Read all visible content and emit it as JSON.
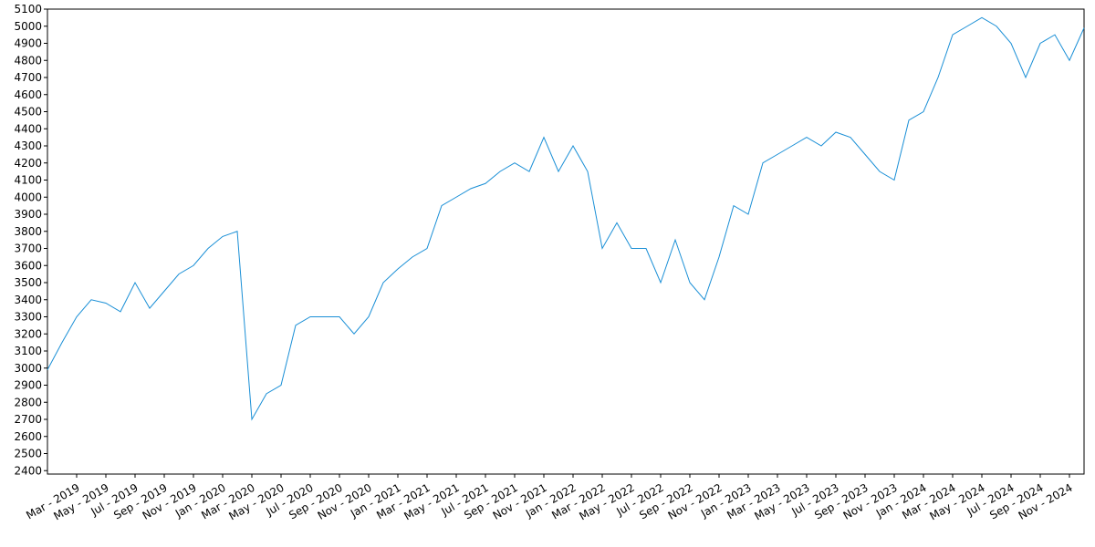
{
  "chart_data": {
    "type": "line",
    "color": "#1a8fd6",
    "x": [
      "2019-01",
      "2019-02",
      "2019-03",
      "2019-04",
      "2019-05",
      "2019-06",
      "2019-07",
      "2019-08",
      "2019-09",
      "2019-10",
      "2019-11",
      "2019-12",
      "2020-01",
      "2020-02",
      "2020-03",
      "2020-04",
      "2020-05",
      "2020-06",
      "2020-07",
      "2020-08",
      "2020-09",
      "2020-10",
      "2020-11",
      "2020-12",
      "2021-01",
      "2021-02",
      "2021-03",
      "2021-04",
      "2021-05",
      "2021-06",
      "2021-07",
      "2021-08",
      "2021-09",
      "2021-10",
      "2021-11",
      "2021-12",
      "2022-01",
      "2022-02",
      "2022-03",
      "2022-04",
      "2022-05",
      "2022-06",
      "2022-07",
      "2022-08",
      "2022-09",
      "2022-10",
      "2022-11",
      "2022-12",
      "2023-01",
      "2023-02",
      "2023-03",
      "2023-04",
      "2023-05",
      "2023-06",
      "2023-07",
      "2023-08",
      "2023-09",
      "2023-10",
      "2023-11",
      "2023-12",
      "2024-01",
      "2024-02",
      "2024-03",
      "2024-04",
      "2024-05",
      "2024-06",
      "2024-07",
      "2024-08",
      "2024-09",
      "2024-10",
      "2024-11",
      "2024-12"
    ],
    "values": [
      2990,
      3150,
      3300,
      3400,
      3380,
      3330,
      3500,
      3350,
      3450,
      3550,
      3600,
      3700,
      3770,
      3800,
      2700,
      2850,
      2900,
      3250,
      3300,
      3300,
      3300,
      3200,
      3300,
      3500,
      3580,
      3650,
      3700,
      3950,
      4000,
      4050,
      4080,
      4150,
      4200,
      4150,
      4350,
      4150,
      4300,
      4150,
      3700,
      3850,
      3700,
      3700,
      3500,
      3750,
      3500,
      3400,
      3650,
      3950,
      3900,
      4200,
      4250,
      4300,
      4350,
      4300,
      4380,
      4350,
      4250,
      4150,
      4100,
      4450,
      4500,
      4700,
      4950,
      5000,
      5050,
      5000,
      4900,
      4700,
      4900,
      4950,
      4800,
      4990
    ],
    "xlim": [
      "2019-01",
      "2024-12"
    ],
    "xticks": [
      {
        "value": "2019-03",
        "label": "Mar - 2019"
      },
      {
        "value": "2019-05",
        "label": "May - 2019"
      },
      {
        "value": "2019-07",
        "label": "Jul - 2019"
      },
      {
        "value": "2019-09",
        "label": "Sep - 2019"
      },
      {
        "value": "2019-11",
        "label": "Nov - 2019"
      },
      {
        "value": "2020-01",
        "label": "Jan - 2020"
      },
      {
        "value": "2020-03",
        "label": "Mar - 2020"
      },
      {
        "value": "2020-05",
        "label": "May - 2020"
      },
      {
        "value": "2020-07",
        "label": "Jul - 2020"
      },
      {
        "value": "2020-09",
        "label": "Sep - 2020"
      },
      {
        "value": "2020-11",
        "label": "Nov - 2020"
      },
      {
        "value": "2021-01",
        "label": "Jan - 2021"
      },
      {
        "value": "2021-03",
        "label": "Mar - 2021"
      },
      {
        "value": "2021-05",
        "label": "May - 2021"
      },
      {
        "value": "2021-07",
        "label": "Jul - 2021"
      },
      {
        "value": "2021-09",
        "label": "Sep - 2021"
      },
      {
        "value": "2021-11",
        "label": "Nov - 2021"
      },
      {
        "value": "2022-01",
        "label": "Jan - 2022"
      },
      {
        "value": "2022-03",
        "label": "Mar - 2022"
      },
      {
        "value": "2022-05",
        "label": "May - 2022"
      },
      {
        "value": "2022-07",
        "label": "Jul - 2022"
      },
      {
        "value": "2022-09",
        "label": "Sep - 2022"
      },
      {
        "value": "2022-11",
        "label": "Nov - 2022"
      },
      {
        "value": "2023-01",
        "label": "Jan - 2023"
      },
      {
        "value": "2023-03",
        "label": "Mar - 2023"
      },
      {
        "value": "2023-05",
        "label": "May - 2023"
      },
      {
        "value": "2023-07",
        "label": "Jul - 2023"
      },
      {
        "value": "2023-09",
        "label": "Sep - 2023"
      },
      {
        "value": "2023-11",
        "label": "Nov - 2023"
      },
      {
        "value": "2024-01",
        "label": "Jan - 2024"
      },
      {
        "value": "2024-03",
        "label": "Mar - 2024"
      },
      {
        "value": "2024-05",
        "label": "May - 2024"
      },
      {
        "value": "2024-07",
        "label": "Jul - 2024"
      },
      {
        "value": "2024-09",
        "label": "Sep - 2024"
      },
      {
        "value": "2024-11",
        "label": "Nov - 2024"
      }
    ],
    "ylim": [
      2380,
      5100
    ],
    "yticks": [
      2400,
      2500,
      2600,
      2700,
      2800,
      2900,
      3000,
      3100,
      3200,
      3300,
      3400,
      3500,
      3600,
      3700,
      3800,
      3900,
      4000,
      4100,
      4200,
      4300,
      4400,
      4500,
      4600,
      4700,
      4800,
      4900,
      5000,
      5100
    ]
  }
}
